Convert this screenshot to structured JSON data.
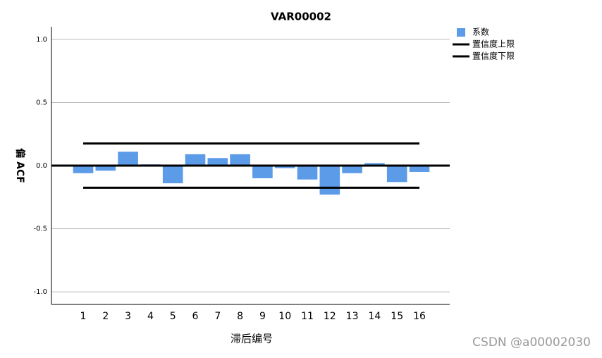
{
  "chart_data": {
    "type": "bar",
    "title": "VAR00002",
    "x_label": "滞后编号",
    "y_label": "偏 ACF",
    "categories": [
      "1",
      "2",
      "3",
      "4",
      "5",
      "6",
      "7",
      "8",
      "9",
      "10",
      "11",
      "12",
      "13",
      "14",
      "15",
      "16"
    ],
    "series": [
      {
        "name": "系数",
        "type": "bar",
        "color": "#5b9be8",
        "values": [
          -0.06,
          -0.04,
          0.11,
          0.01,
          -0.14,
          0.09,
          0.06,
          0.09,
          -0.1,
          -0.02,
          -0.11,
          -0.23,
          -0.06,
          0.02,
          -0.13,
          -0.05
        ]
      },
      {
        "name": "置信度上限",
        "type": "line",
        "color": "#000000",
        "values": [
          0.175,
          0.175,
          0.175,
          0.175,
          0.175,
          0.175,
          0.175,
          0.175,
          0.175,
          0.175,
          0.175,
          0.175,
          0.175,
          0.175,
          0.175,
          0.175
        ]
      },
      {
        "name": "置信度下限",
        "type": "line",
        "color": "#000000",
        "values": [
          -0.175,
          -0.175,
          -0.175,
          -0.175,
          -0.175,
          -0.175,
          -0.175,
          -0.175,
          -0.175,
          -0.175,
          -0.175,
          -0.175,
          -0.175,
          -0.175,
          -0.175,
          -0.175
        ]
      }
    ],
    "ylim": [
      -1.1,
      1.1
    ],
    "yticks": [
      {
        "value": -1,
        "label": "-1.0"
      },
      {
        "value": -0.5,
        "label": "-0.5"
      },
      {
        "value": 0,
        "label": "0.0"
      },
      {
        "value": 0.5,
        "label": "0.5"
      },
      {
        "value": 1,
        "label": "1.0"
      }
    ],
    "grid": true,
    "legend": "right",
    "watermark": "CSDN @a00002030"
  }
}
